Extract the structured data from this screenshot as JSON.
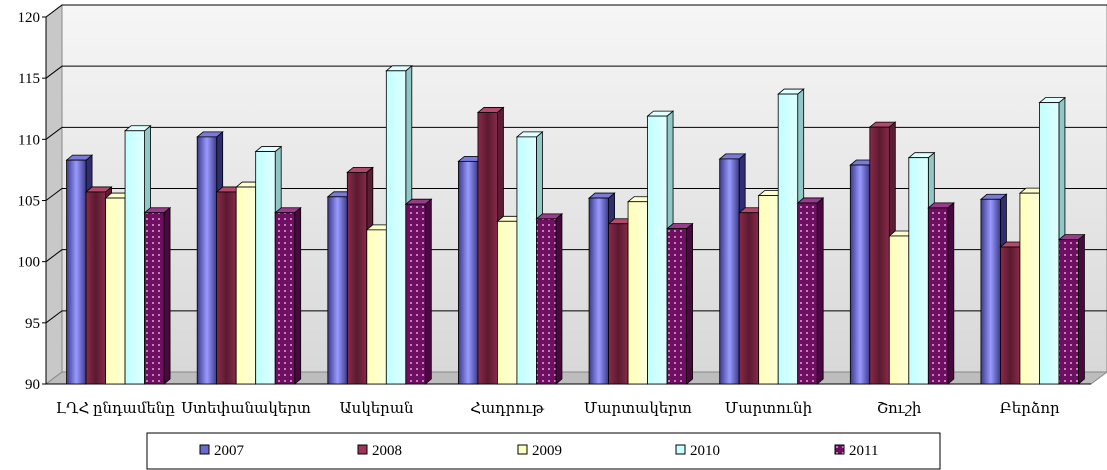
{
  "chart_data": {
    "type": "bar",
    "categories": [
      "ԼՂՀ ընդամենը",
      "Ստեփանակերտ",
      "Ասկերան",
      "Հադրութ",
      "Մարտակերտ",
      "Մարտունի",
      "Շուշի",
      "Բերձոր"
    ],
    "series": [
      {
        "name": "2007",
        "values": [
          108.3,
          110.2,
          105.3,
          108.2,
          105.2,
          108.4,
          107.9,
          105.1
        ]
      },
      {
        "name": "2008",
        "values": [
          105.7,
          105.7,
          107.3,
          112.2,
          103.1,
          104.0,
          111.0,
          101.2
        ]
      },
      {
        "name": "2009",
        "values": [
          105.2,
          106.1,
          102.6,
          103.3,
          104.9,
          105.4,
          102.1,
          105.6
        ]
      },
      {
        "name": "2010",
        "values": [
          110.7,
          109.0,
          115.6,
          110.2,
          111.9,
          113.7,
          108.5,
          113.0
        ]
      },
      {
        "name": "2011",
        "values": [
          104.0,
          104.0,
          104.7,
          103.5,
          102.7,
          104.8,
          104.4,
          101.8
        ]
      }
    ],
    "y_ticks": [
      "90",
      "95",
      "100",
      "105",
      "110",
      "115",
      "120"
    ],
    "ylim": [
      90,
      120
    ],
    "grid": true,
    "legend_position": "bottom",
    "colors": [
      "#6a6acc",
      "#a03558",
      "#ffffc0",
      "#c8ffff",
      "#6e0f62"
    ]
  }
}
